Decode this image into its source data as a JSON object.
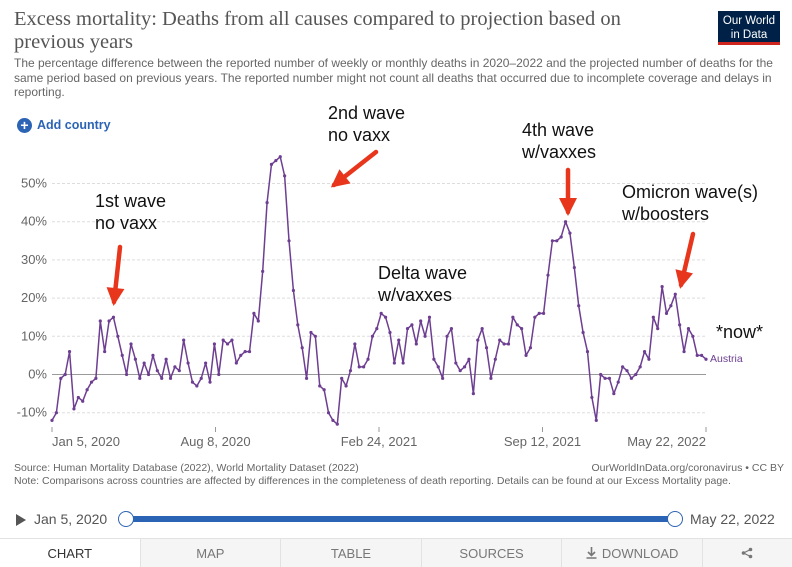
{
  "header": {
    "title": "Excess mortality: Deaths from all causes compared to projection based on previous years",
    "subtitle": "The percentage difference between the reported number of weekly or monthly deaths in 2020–2022 and the projected number of deaths for the same period based on previous years. The reported number might not count all deaths that occurred due to incomplete coverage and delays in reporting.",
    "logo": "Our World in Data",
    "add_country": "Add country"
  },
  "chart_data": {
    "type": "line",
    "x_start": "Jan 5, 2020",
    "x_end": "May 22, 2022",
    "x_tick_labels": [
      "Jan 5, 2020",
      "Aug 8, 2020",
      "Feb 24, 2021",
      "Sep 12, 2021",
      "May 22, 2022"
    ],
    "y_tick_labels": [
      "-10%",
      "0%",
      "10%",
      "20%",
      "30%",
      "40%",
      "50%"
    ],
    "ylim": [
      -13,
      57
    ],
    "grid": true,
    "series": [
      {
        "name": "Austria",
        "color": "#6d3e91",
        "values": [
          -12,
          -10,
          -1,
          0,
          6,
          -9,
          -6,
          -7,
          -4,
          -2,
          -1,
          14,
          6,
          14,
          15,
          10,
          5,
          0,
          8,
          4,
          -1,
          3,
          0,
          5,
          1,
          -1,
          4,
          -1,
          2,
          1,
          9,
          3,
          -2,
          -3,
          -1,
          3,
          -2,
          8,
          0,
          9,
          8,
          9,
          3,
          5,
          6,
          6,
          16,
          14,
          27,
          45,
          55,
          56,
          57,
          52,
          35,
          22,
          13,
          7,
          -1,
          11,
          10,
          -3,
          -4,
          -10,
          -12,
          -13,
          -1,
          -3,
          1,
          8,
          2,
          2,
          4,
          10,
          12,
          16,
          15,
          11,
          3,
          9,
          3,
          12,
          13,
          8,
          14,
          10,
          15,
          4,
          2,
          -1,
          10,
          12,
          3,
          1,
          2,
          4,
          -5,
          9,
          12,
          7,
          -1,
          4,
          9,
          8,
          8,
          15,
          13,
          12,
          5,
          7,
          15,
          16,
          16,
          26,
          35,
          35,
          36,
          40,
          37,
          28,
          18,
          11,
          6,
          -6,
          -12,
          0,
          -1,
          -1,
          -5,
          -2,
          2,
          1,
          -1,
          0,
          2,
          6,
          4,
          15,
          12,
          23,
          16,
          18,
          21,
          13,
          6,
          12,
          10,
          5,
          5,
          4
        ]
      }
    ],
    "annotations": [
      {
        "label": "1st wave\nno vaxx",
        "x": "Mar 2020"
      },
      {
        "label": "2nd wave\nno vaxx",
        "x": "Nov 2020"
      },
      {
        "label": "Delta wave\nw/vaxxes",
        "x": "Apr 2021"
      },
      {
        "label": "4th wave\nw/vaxxes",
        "x": "Nov 2021"
      },
      {
        "label": "Omicron wave(s)\nw/boosters",
        "x": "Mar 2022"
      },
      {
        "label": "*now*",
        "x": "May 2022"
      }
    ]
  },
  "footer": {
    "source": "Source: Human Mortality Database (2022), World Mortality Dataset (2022)",
    "url": "OurWorldInData.org/coronavirus • CC BY",
    "note": "Note: Comparisons across countries are affected by differences in the completeness of death reporting. Details can be found at our Excess Mortality page."
  },
  "timeline": {
    "start": "Jan 5, 2020",
    "end": "May 22, 2022"
  },
  "tabs": [
    "CHART",
    "MAP",
    "TABLE",
    "SOURCES",
    "DOWNLOAD"
  ],
  "colors": {
    "line": "#6d3e91",
    "accent": "#2c64b5",
    "arrow": "#e8361c"
  }
}
